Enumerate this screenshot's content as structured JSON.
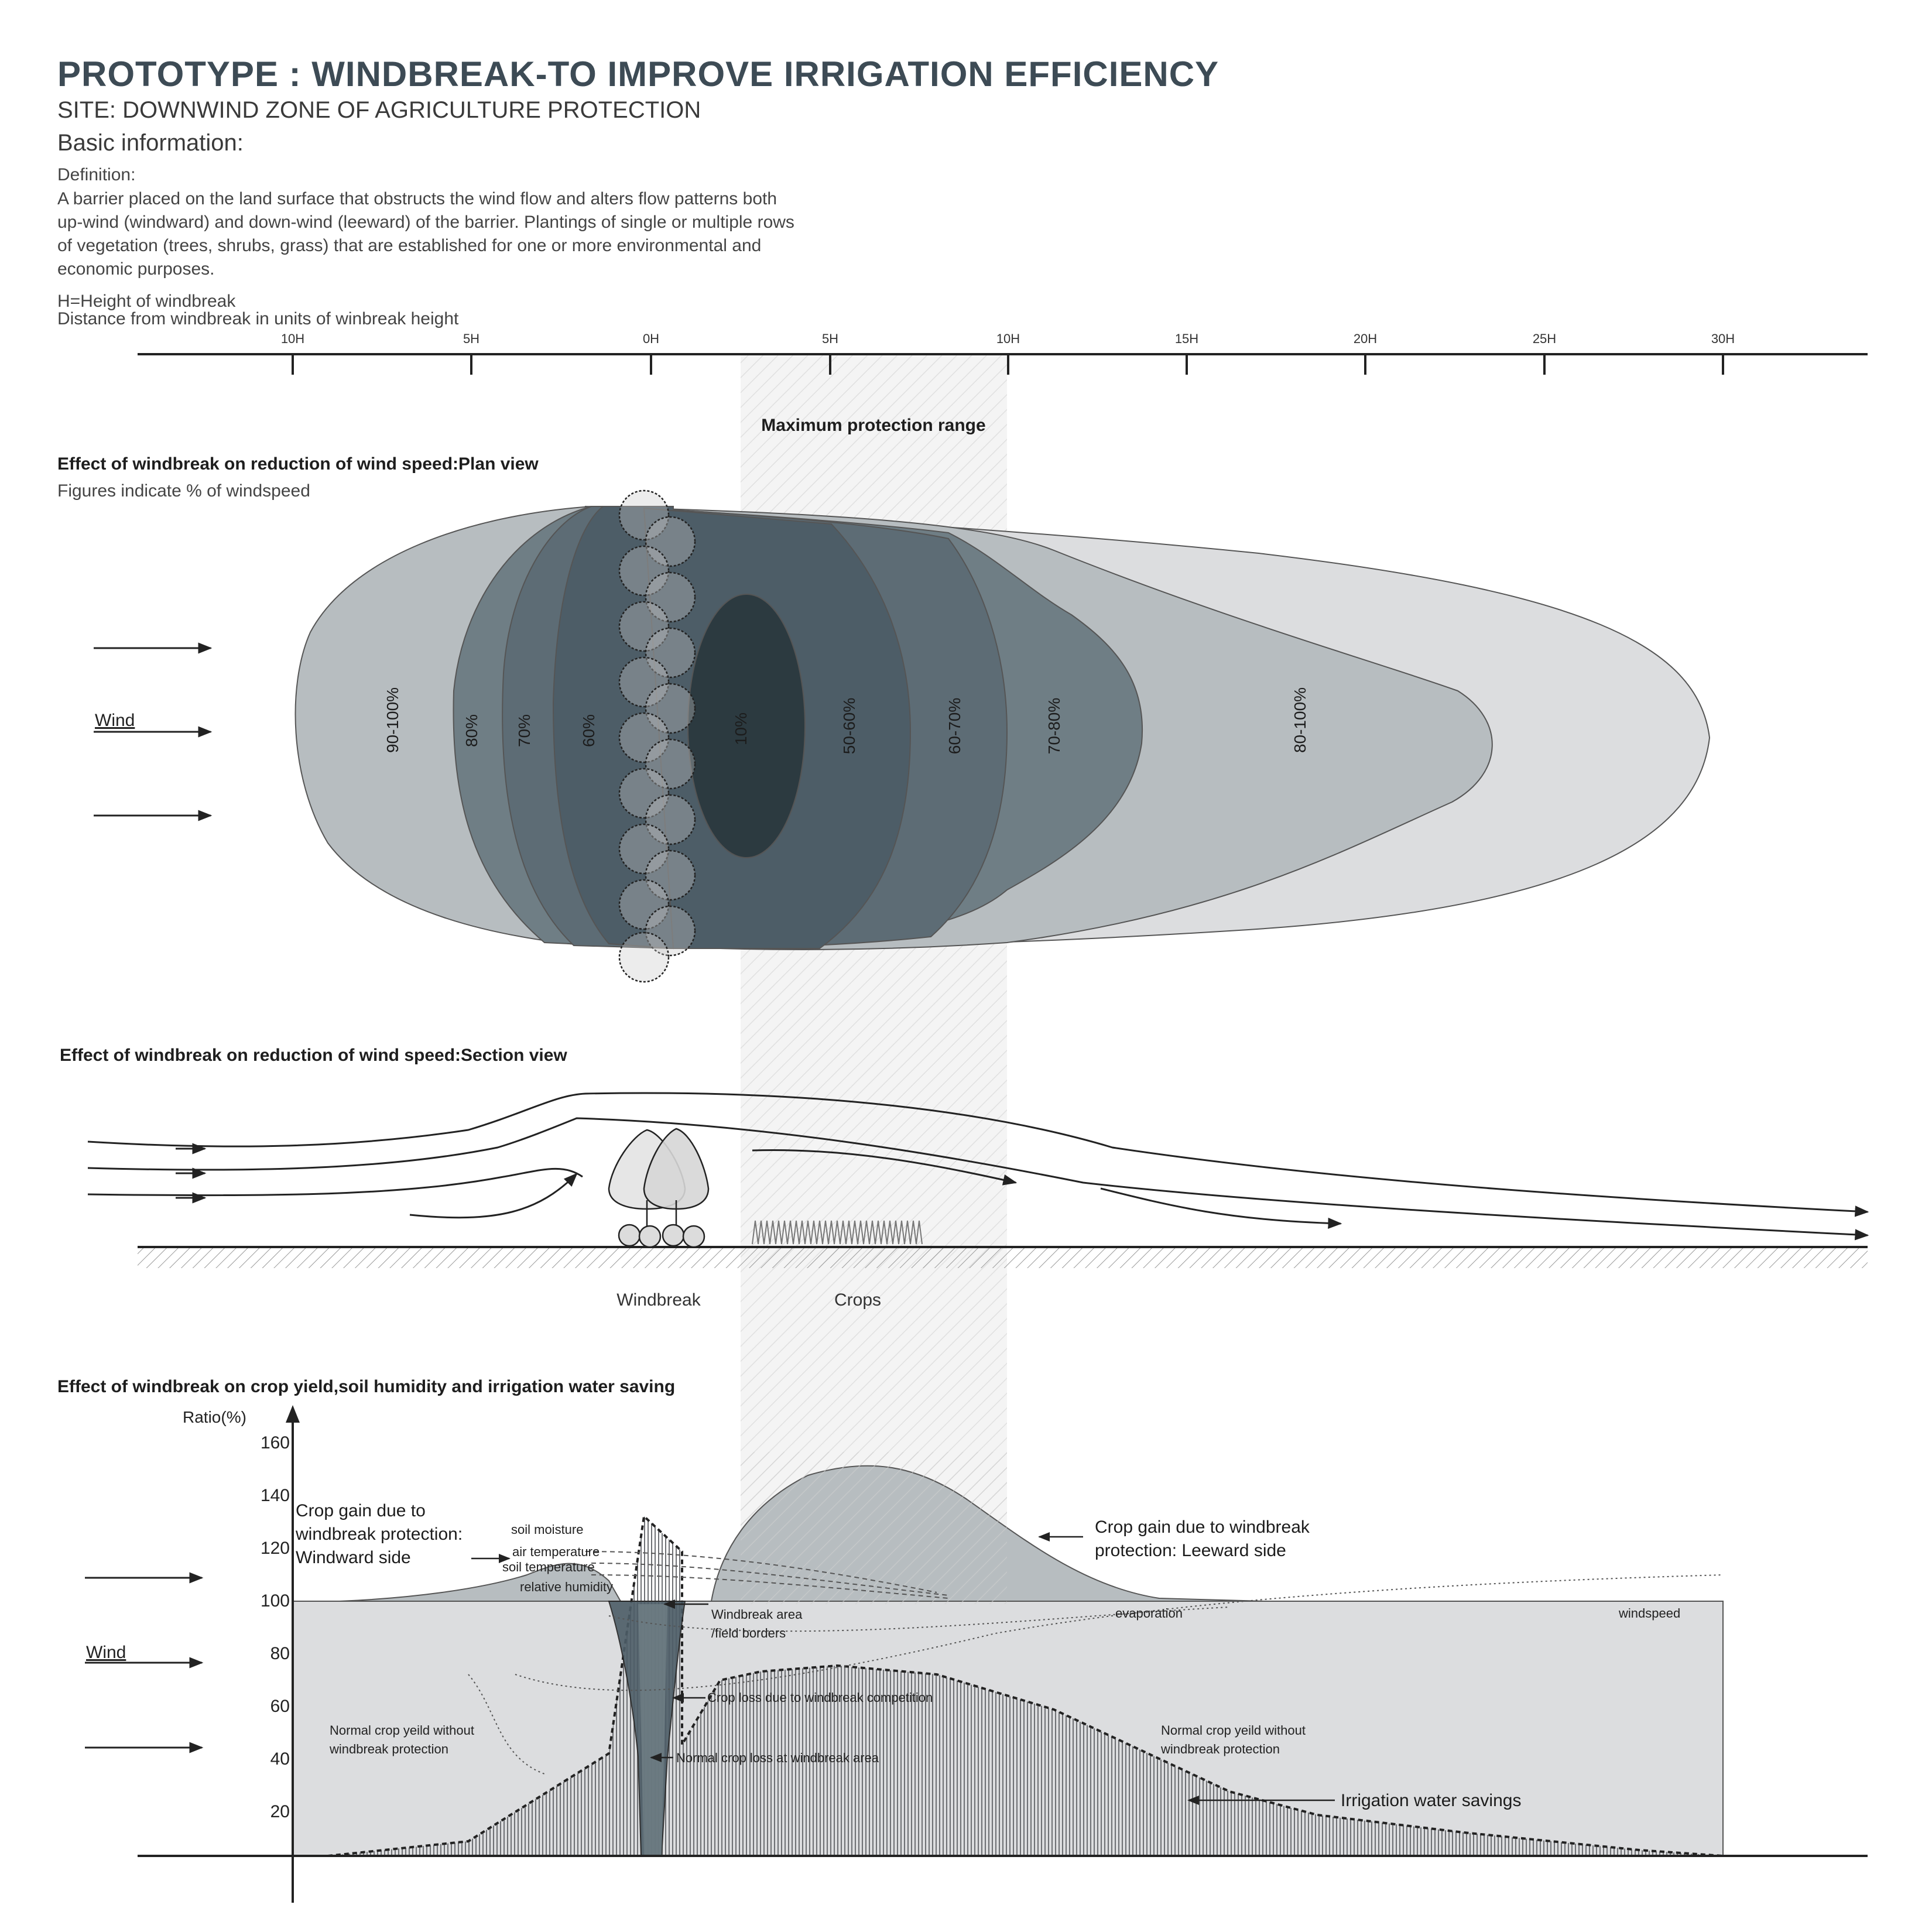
{
  "header": {
    "title": "PROTOTYPE : WINDBREAK-TO IMPROVE IRRIGATION EFFICIENCY",
    "subtitle": "SITE: DOWNWIND ZONE OF AGRICULTURE PROTECTION",
    "basic_info": "Basic information:",
    "definition_label": "Definition:",
    "definition_text": "A barrier placed on the land surface that obstructs the wind flow and alters flow patterns both up-wind (windward) and down-wind (leeward) of the barrier. Plantings of single or multiple rows of vegetation (trees, shrubs, grass) that are established for one or more environmental and economic purposes.",
    "h_definition": "H=Height of windbreak",
    "distance_note": "Distance from windbreak in units of winbreak height"
  },
  "scale": {
    "ticks": [
      "10H",
      "5H",
      "0H",
      "5H",
      "10H",
      "15H",
      "20H",
      "25H",
      "30H"
    ]
  },
  "protection_range_label": "Maximum protection range",
  "plan_view": {
    "title": "Effect of windbreak on reduction of wind speed:Plan view",
    "subtitle": "Figures indicate % of windspeed",
    "wind_label": "Wind",
    "zones": [
      "90-100%",
      "80%",
      "70%",
      "60%",
      "10%",
      "50-60%",
      "60-70%",
      "70-80%",
      "80-100%"
    ],
    "colors": {
      "zone_lightest": "#dcdddf",
      "zone_light": "#b7bdc0",
      "zone_mid": "#6f7e85",
      "zone_dark": "#4d5d67",
      "zone_darkest": "#2c3a40"
    }
  },
  "section_view": {
    "title": "Effect of windbreak on reduction of wind speed:Section view",
    "windbreak_label": "Windbreak",
    "crops_label": "Crops"
  },
  "yield_chart": {
    "title": "Effect of windbreak on crop yield,soil humidity and irrigation water saving",
    "y_axis_label": "Ratio(%)",
    "y_ticks": [
      "160",
      "140",
      "120",
      "100",
      "80",
      "60",
      "40",
      "20"
    ],
    "wind_label": "Wind",
    "labels": {
      "crop_gain_windward": [
        "Crop gain due to",
        "windbreak protection:",
        "Windward side"
      ],
      "crop_gain_leeward": [
        "Crop gain due to windbreak",
        "protection: Leeward side"
      ],
      "soil_moisture": "soil moisture",
      "air_temperature": "air temperature",
      "soil_temperature": "soil temperature",
      "relative_humidity": "relative humidity",
      "windbreak_area": [
        "Windbreak area",
        "/field borders"
      ],
      "evaporation": "evaporation",
      "windspeed": "windspeed",
      "crop_loss_competition": "Crop loss due to windbreak competition",
      "normal_crop_loss": "Normal crop loss at windbreak area",
      "normal_yield_left": [
        "Normal crop yeild without",
        "windbreak protection"
      ],
      "normal_yield_right": [
        "Normal crop yeild without",
        "windbreak protection"
      ],
      "irrigation_savings": "Irrigation water savings"
    }
  }
}
